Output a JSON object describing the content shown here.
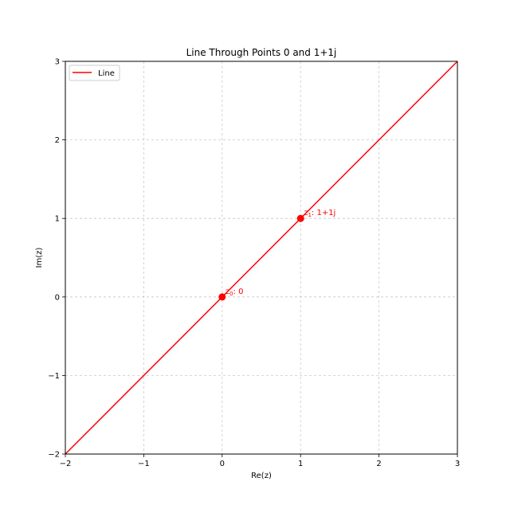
{
  "chart_data": {
    "type": "line",
    "title": "Line Through Points 0 and 1+1j",
    "xlabel": "Re(z)",
    "ylabel": "Im(z)",
    "xlim": [
      -2,
      3
    ],
    "ylim": [
      -2,
      3
    ],
    "x_ticks": [
      -2,
      -1,
      0,
      1,
      2,
      3
    ],
    "y_ticks": [
      -2,
      -1,
      0,
      1,
      2,
      3
    ],
    "x_tick_labels": [
      "−2",
      "−1",
      "0",
      "1",
      "2",
      "3"
    ],
    "y_tick_labels": [
      "−2",
      "−1",
      "0",
      "1",
      "2",
      "3"
    ],
    "grid": true,
    "legend_position": "upper-left",
    "series": [
      {
        "name": "Line",
        "color": "#ff0000",
        "x": [
          -2,
          3
        ],
        "y": [
          -2,
          3
        ]
      }
    ],
    "points": [
      {
        "x": 0,
        "y": 0,
        "label_sub": "0",
        "label_rest": ": 0",
        "color": "#ff0000"
      },
      {
        "x": 1,
        "y": 1,
        "label_sub": "1",
        "label_rest": ": 1+1j",
        "color": "#ff0000"
      }
    ],
    "point_label_prefix": "z"
  }
}
